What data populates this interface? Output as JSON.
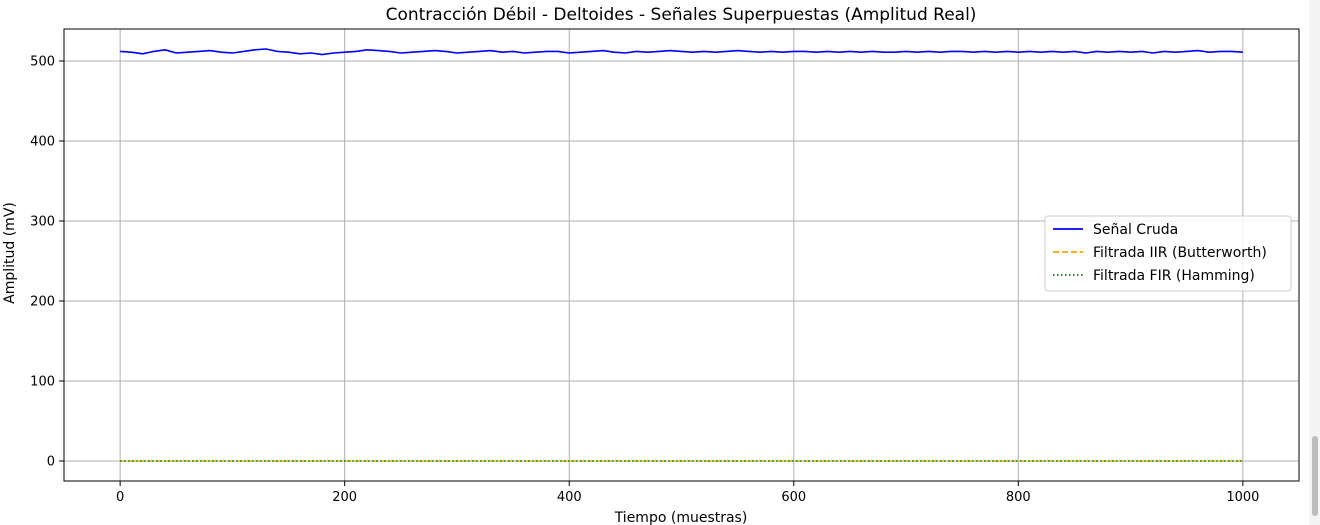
{
  "chart_data": {
    "type": "line",
    "title": "Contracción Débil - Deltoides - Señales Superpuestas (Amplitud Real)",
    "xlabel": "Tiempo (muestras)",
    "ylabel": "Amplitud (mV)",
    "xlim": [
      -50,
      1050
    ],
    "ylim": [
      -25,
      540
    ],
    "xticks": [
      0,
      200,
      400,
      600,
      800,
      1000
    ],
    "yticks": [
      0,
      100,
      200,
      300,
      400,
      500
    ],
    "grid": true,
    "legend_position": "center-right",
    "series": [
      {
        "name": "Señal Cruda",
        "color": "#0000ff",
        "style": "solid",
        "x": [
          0,
          10,
          20,
          30,
          40,
          50,
          60,
          70,
          80,
          90,
          100,
          110,
          120,
          130,
          140,
          150,
          160,
          170,
          180,
          190,
          200,
          210,
          220,
          230,
          240,
          250,
          260,
          270,
          280,
          290,
          300,
          310,
          320,
          330,
          340,
          350,
          360,
          370,
          380,
          390,
          400,
          410,
          420,
          430,
          440,
          450,
          460,
          470,
          480,
          490,
          500,
          510,
          520,
          530,
          540,
          550,
          560,
          570,
          580,
          590,
          600,
          610,
          620,
          630,
          640,
          650,
          660,
          670,
          680,
          690,
          700,
          710,
          720,
          730,
          740,
          750,
          760,
          770,
          780,
          790,
          800,
          810,
          820,
          830,
          840,
          850,
          860,
          870,
          880,
          890,
          900,
          910,
          920,
          930,
          940,
          950,
          960,
          970,
          980,
          990,
          1000
        ],
        "y": [
          512,
          511,
          509,
          512,
          514,
          510,
          511,
          512,
          513,
          511,
          510,
          512,
          514,
          515,
          512,
          511,
          509,
          510,
          508,
          510,
          511,
          512,
          514,
          513,
          512,
          510,
          511,
          512,
          513,
          512,
          510,
          511,
          512,
          513,
          511,
          512,
          510,
          511,
          512,
          512,
          510,
          511,
          512,
          513,
          511,
          510,
          512,
          511,
          512,
          513,
          512,
          511,
          512,
          511,
          512,
          513,
          512,
          511,
          512,
          511,
          512,
          512,
          511,
          512,
          511,
          512,
          511,
          512,
          511,
          511,
          512,
          511,
          512,
          511,
          512,
          512,
          511,
          512,
          511,
          512,
          511,
          512,
          511,
          512,
          511,
          512,
          510,
          512,
          511,
          512,
          511,
          512,
          510,
          512,
          511,
          512,
          513,
          511,
          512,
          512,
          511
        ]
      },
      {
        "name": "Filtrada IIR (Butterworth)",
        "color": "#ffa500",
        "style": "dashed",
        "x": [
          0,
          1000
        ],
        "y": [
          0,
          0
        ]
      },
      {
        "name": "Filtrada FIR (Hamming)",
        "color": "#008000",
        "style": "dotted",
        "x": [
          0,
          1000
        ],
        "y": [
          0,
          0
        ]
      }
    ]
  }
}
